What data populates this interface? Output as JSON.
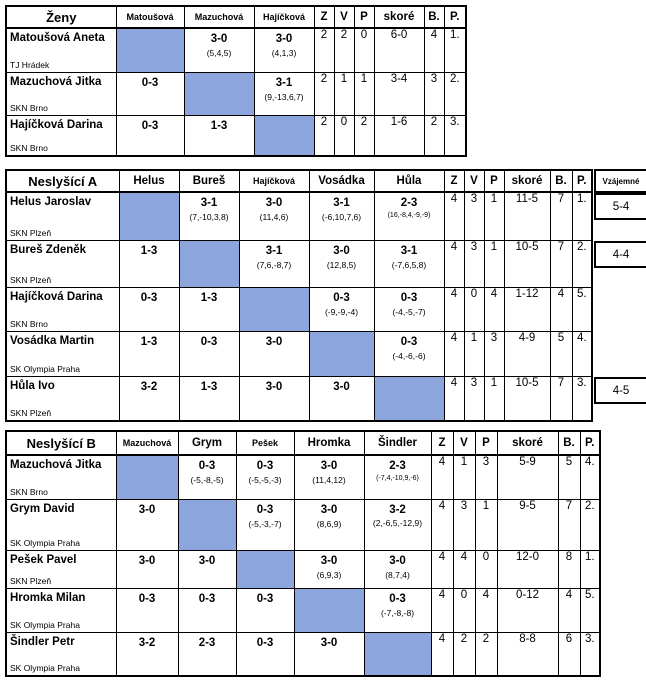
{
  "colors": {
    "diagonal_fill": "#8CA5DC",
    "grid": "#000000",
    "background": "#FFFFFF"
  },
  "tables": [
    {
      "id": "zeny",
      "title": "Ženy",
      "opponents": [
        {
          "label": "Matoušová",
          "small": true
        },
        {
          "label": "Mazuchová",
          "small": true
        },
        {
          "label": "Hajíčková",
          "small": true
        }
      ],
      "stat_headers": [
        "Z",
        "V",
        "P",
        "skoré",
        "B.",
        "P."
      ],
      "mutual_header": null,
      "rows": [
        {
          "name": "Matoušová Aneta",
          "club": "TJ Hrádek",
          "results": [
            null,
            {
              "score": "3-0",
              "sets": "(5,4,5)"
            },
            {
              "score": "3-0",
              "sets": "(4,1,3)"
            }
          ],
          "stats": [
            "2",
            "2",
            "0",
            "6-0",
            "4",
            "1."
          ],
          "mutual": null
        },
        {
          "name": "Mazuchová Jitka",
          "club": "SKN Brno",
          "results": [
            {
              "score": "0-3"
            },
            null,
            {
              "score": "3-1",
              "sets": "(9,-13,6,7)"
            }
          ],
          "stats": [
            "2",
            "1",
            "1",
            "3-4",
            "3",
            "2."
          ],
          "mutual": null
        },
        {
          "name": "Hajíčková Darina",
          "club": "SKN Brno",
          "results": [
            {
              "score": "0-3"
            },
            {
              "score": "1-3"
            },
            null
          ],
          "stats": [
            "2",
            "0",
            "2",
            "1-6",
            "2",
            "3."
          ],
          "mutual": null
        }
      ]
    },
    {
      "id": "neslysici-a",
      "title": "Neslyšící A",
      "opponents": [
        {
          "label": "Helus",
          "small": false
        },
        {
          "label": "Bureš",
          "small": false
        },
        {
          "label": "Hajíčková",
          "small": true
        },
        {
          "label": "Vosádka",
          "small": false
        },
        {
          "label": "Hůla",
          "small": false
        }
      ],
      "stat_headers": [
        "Z",
        "V",
        "P",
        "skoré",
        "B.",
        "P."
      ],
      "mutual_header": "Vzájemné",
      "rows": [
        {
          "name": "Helus Jaroslav",
          "club": "SKN Plzeň",
          "results": [
            null,
            {
              "score": "3-1",
              "sets": "(7,-10,3,8)"
            },
            {
              "score": "3-0",
              "sets": "(11,4,6)"
            },
            {
              "score": "3-1",
              "sets": "(-6,10,7,6)"
            },
            {
              "score": "2-3",
              "sets": "(16,-8,4,-9,-9)"
            }
          ],
          "stats": [
            "4",
            "3",
            "1",
            "11-5",
            "7",
            "1."
          ],
          "mutual": "5-4"
        },
        {
          "name": "Bureš Zdeněk",
          "club": "SKN Plzeň",
          "results": [
            {
              "score": "1-3"
            },
            null,
            {
              "score": "3-1",
              "sets": "(7,6,-8,7)"
            },
            {
              "score": "3-0",
              "sets": "(12,8,5)"
            },
            {
              "score": "3-1",
              "sets": "(-7,6,5,8)"
            }
          ],
          "stats": [
            "4",
            "3",
            "1",
            "10-5",
            "7",
            "2."
          ],
          "mutual": "4-4"
        },
        {
          "name": "Hajíčková Darina",
          "club": "SKN Brno",
          "results": [
            {
              "score": "0-3"
            },
            {
              "score": "1-3"
            },
            null,
            {
              "score": "0-3",
              "sets": "(-9,-9,-4)"
            },
            {
              "score": "0-3",
              "sets": "(-4,-5,-7)"
            }
          ],
          "stats": [
            "4",
            "0",
            "4",
            "1-12",
            "4",
            "5."
          ],
          "mutual": null
        },
        {
          "name": "Vosádka Martin",
          "club": "SK Olympia Praha",
          "results": [
            {
              "score": "1-3"
            },
            {
              "score": "0-3"
            },
            {
              "score": "3-0"
            },
            null,
            {
              "score": "0-3",
              "sets": "(-4,-6,-6)"
            }
          ],
          "stats": [
            "4",
            "1",
            "3",
            "4-9",
            "5",
            "4."
          ],
          "mutual": null
        },
        {
          "name": "Hůla Ivo",
          "club": "SKN Plzeň",
          "results": [
            {
              "score": "3-2"
            },
            {
              "score": "1-3"
            },
            {
              "score": "3-0"
            },
            {
              "score": "3-0"
            },
            null
          ],
          "stats": [
            "4",
            "3",
            "1",
            "10-5",
            "7",
            "3."
          ],
          "mutual": "4-5"
        }
      ]
    },
    {
      "id": "neslysici-b",
      "title": "Neslyšící B",
      "opponents": [
        {
          "label": "Mazuchová",
          "small": true
        },
        {
          "label": "Grym",
          "small": false
        },
        {
          "label": "Pešek",
          "small": true
        },
        {
          "label": "Hromka",
          "small": false
        },
        {
          "label": "Šindler",
          "small": false
        }
      ],
      "stat_headers": [
        "Z",
        "V",
        "P",
        "skoré",
        "B.",
        "P."
      ],
      "mutual_header": null,
      "rows": [
        {
          "name": "Mazuchová Jitka",
          "club": "SKN Brno",
          "results": [
            null,
            {
              "score": "0-3",
              "sets": "(-5,-8,-5)"
            },
            {
              "score": "0-3",
              "sets": "(-5,-5,-3)"
            },
            {
              "score": "3-0",
              "sets": "(11,4,12)"
            },
            {
              "score": "2-3",
              "sets": "(-7,4,-10,9,-6)"
            }
          ],
          "stats": [
            "4",
            "1",
            "3",
            "5-9",
            "5",
            "4."
          ],
          "mutual": null
        },
        {
          "name": "Grym David",
          "club": "SK Olympia Praha",
          "results": [
            {
              "score": "3-0"
            },
            null,
            {
              "score": "0-3",
              "sets": "(-5,-3,-7)"
            },
            {
              "score": "3-0",
              "sets": "(8,6,9)"
            },
            {
              "score": "3-2",
              "sets": "(2,-6,5,-12,9)",
              "wrap": true
            }
          ],
          "stats": [
            "4",
            "3",
            "1",
            "9-5",
            "7",
            "2."
          ],
          "mutual": null
        },
        {
          "name": "Pešek Pavel",
          "club": "SKN Plzeň",
          "results": [
            {
              "score": "3-0"
            },
            {
              "score": "3-0"
            },
            null,
            {
              "score": "3-0",
              "sets": "(6,9,3)"
            },
            {
              "score": "3-0",
              "sets": "(8,7,4)"
            }
          ],
          "stats": [
            "4",
            "4",
            "0",
            "12-0",
            "8",
            "1."
          ],
          "mutual": null
        },
        {
          "name": "Hromka Milan",
          "club": "SK Olympia Praha",
          "results": [
            {
              "score": "0-3"
            },
            {
              "score": "0-3"
            },
            {
              "score": "0-3"
            },
            null,
            {
              "score": "0-3",
              "sets": "(-7,-8,-8)"
            }
          ],
          "stats": [
            "4",
            "0",
            "4",
            "0-12",
            "4",
            "5."
          ],
          "mutual": null
        },
        {
          "name": "Šindler Petr",
          "club": "SK Olympia Praha",
          "results": [
            {
              "score": "3-2"
            },
            {
              "score": "2-3"
            },
            {
              "score": "0-3"
            },
            {
              "score": "3-0"
            },
            null
          ],
          "stats": [
            "4",
            "2",
            "2",
            "8-8",
            "6",
            "3."
          ],
          "mutual": null
        }
      ]
    }
  ]
}
